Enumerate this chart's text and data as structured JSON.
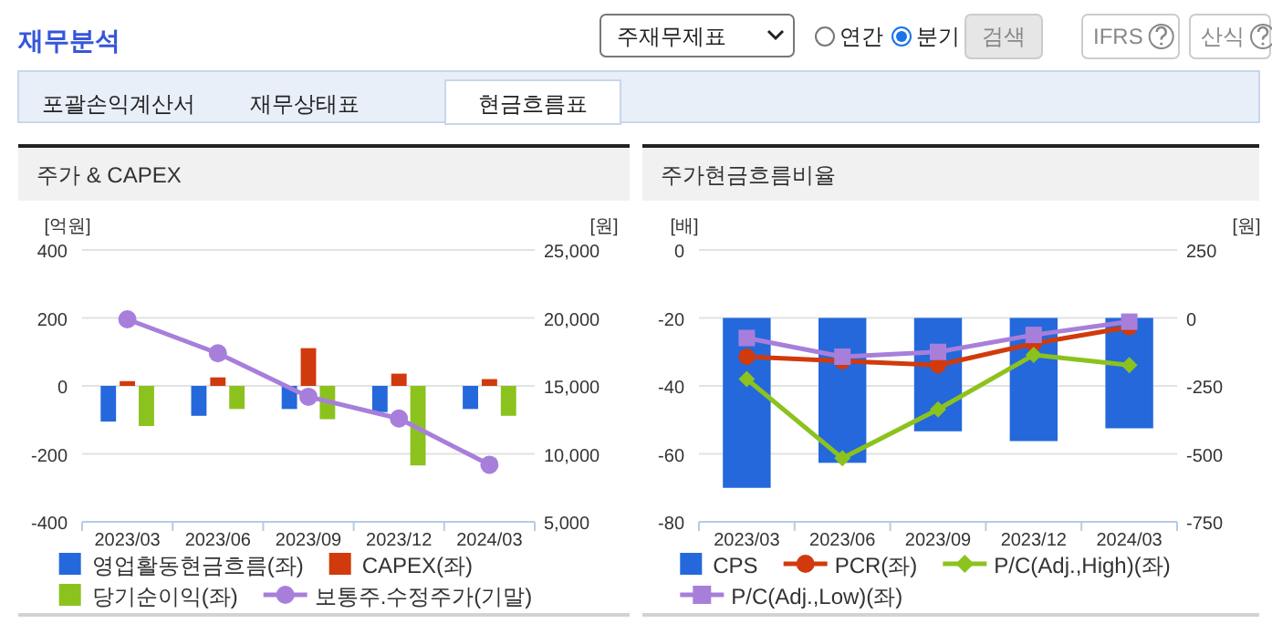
{
  "chart_data": [
    {
      "type": "other",
      "title": "재무분석",
      "annotations": [
        "주재무제표",
        "연간",
        "분기",
        "검색",
        "IFRS",
        "산식",
        "포괄손익계산서",
        "재무상태표",
        "현금흐름표"
      ]
    },
    {
      "type": "bar",
      "title": "주가 & CAPEX",
      "ylabel": "[억원]",
      "y2label": "[원]",
      "categories": [
        "2023/03",
        "2023/06",
        "2023/09",
        "2023/12",
        "2024/03"
      ],
      "ylim": [
        -400,
        400
      ],
      "yticks": [
        -400,
        -200,
        0,
        200,
        400
      ],
      "y2lim": [
        5000,
        25000
      ],
      "y2ticks": [
        {
          "value": 5000,
          "label": "5,000"
        },
        {
          "value": 10000,
          "label": "10,000"
        },
        {
          "value": 15000,
          "label": "15,000"
        },
        {
          "value": 20000,
          "label": "20,000"
        },
        {
          "value": 25000,
          "label": "25,000"
        }
      ],
      "grid": "y",
      "legend": "bottom",
      "series": [
        {
          "name": "영업활동현금흐름(좌)",
          "type": "bar",
          "color": "#2468dc",
          "values": [
            -105,
            -88,
            -68,
            -77,
            -68
          ]
        },
        {
          "name": "CAPEX(좌)",
          "type": "bar",
          "color": "#d03a0c",
          "values": [
            14,
            25,
            111,
            36,
            20
          ]
        },
        {
          "name": "당기순이익(좌)",
          "type": "bar",
          "color": "#8cc21e",
          "values": [
            -118,
            -68,
            -98,
            -234,
            -88
          ]
        },
        {
          "name": "보통주.수정주가(기말)",
          "type": "line",
          "axis": "y2",
          "color": "#a77fdb",
          "marker": "circle",
          "values": [
            19900,
            17400,
            14200,
            12600,
            9200
          ]
        }
      ]
    },
    {
      "type": "line",
      "title": "주가현금흐름비율",
      "ylabel": "[배]",
      "y2label": "[원]",
      "categories": [
        "2023/03",
        "2023/06",
        "2023/09",
        "2023/12",
        "2024/03"
      ],
      "ylim": [
        -80,
        0
      ],
      "yticks": [
        -80,
        -60,
        -40,
        -20,
        0
      ],
      "y2lim": [
        -750,
        250
      ],
      "y2ticks": [
        -750,
        -500,
        -250,
        0,
        250
      ],
      "grid": "y",
      "legend": "bottom",
      "series": [
        {
          "name": "CPS",
          "type": "bar",
          "axis": "y2",
          "color": "#2468dc",
          "values": [
            -625,
            -533,
            -417,
            -453,
            -406
          ]
        },
        {
          "name": "PCR(좌)",
          "type": "line",
          "color": "#d03a0c",
          "marker": "circle",
          "values": [
            -31.4,
            -32.7,
            -33.9,
            -27.5,
            -22.7
          ]
        },
        {
          "name": "P/C(Adj.,High)(좌)",
          "type": "line",
          "color": "#8cc21e",
          "marker": "diamond",
          "values": [
            -38.0,
            -61.3,
            -46.9,
            -30.9,
            -33.9
          ]
        },
        {
          "name": "P/C(Adj.,Low)(좌)",
          "type": "line",
          "color": "#a77fdb",
          "marker": "square",
          "values": [
            -25.9,
            -31.4,
            -30.0,
            -25.0,
            -21.1
          ]
        }
      ]
    }
  ]
}
